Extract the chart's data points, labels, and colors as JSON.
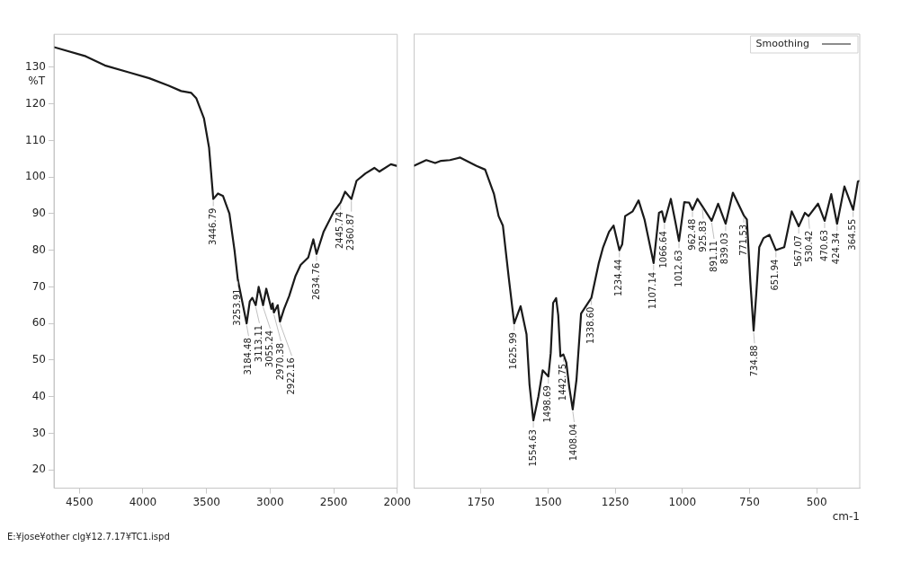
{
  "chart_data": [
    {
      "type": "line",
      "ylabel": "%T",
      "xlim": [
        4700,
        2000
      ],
      "xticks": [
        4500,
        4000,
        3500,
        3000,
        2500,
        2000
      ],
      "ylim": [
        15,
        139
      ],
      "yticks": [
        20,
        30,
        40,
        50,
        60,
        70,
        80,
        90,
        100,
        110,
        120,
        130
      ],
      "grid": false,
      "marker": "none",
      "line_style": "solid",
      "series": [
        {
          "color": "#1a1a1a",
          "x": [
            4700,
            4450,
            4300,
            4100,
            3950,
            3800,
            3700,
            3620,
            3580,
            3520,
            3480,
            3446.79,
            3410,
            3370,
            3320,
            3280,
            3253.91,
            3184.48,
            3160,
            3140,
            3113.11,
            3090,
            3055.24,
            3030,
            2990,
            2980,
            2970.38,
            2940,
            2922.16,
            2890,
            2850,
            2800,
            2760,
            2700,
            2660,
            2634.76,
            2580,
            2500,
            2445.74,
            2410,
            2360.87,
            2320,
            2250,
            2180,
            2140,
            2050,
            2000
          ],
          "values": [
            135.5,
            133,
            130.5,
            128.5,
            127,
            125,
            123.5,
            123,
            121.5,
            116,
            108,
            94,
            95.5,
            94.8,
            90,
            80,
            72,
            60,
            66,
            67,
            65,
            70,
            65,
            69.5,
            64,
            65.5,
            63,
            65,
            60.5,
            64,
            67.5,
            73,
            76,
            78,
            83,
            79,
            85,
            90.5,
            93,
            96,
            94,
            99,
            101,
            102.5,
            101.5,
            103.5,
            103
          ]
        }
      ],
      "annotations": [
        {
          "text": "3446.79",
          "x": 3446.79,
          "y": 94
        },
        {
          "text": "3253.91",
          "x": 3253.91,
          "y": 72
        },
        {
          "text": "3184.48",
          "x": 3184.48,
          "y": 60
        },
        {
          "text": "3113.11",
          "x": 3113.11,
          "y": 65
        },
        {
          "text": "3055.24",
          "x": 3055.24,
          "y": 65
        },
        {
          "text": "2970.38",
          "x": 2970.38,
          "y": 63
        },
        {
          "text": "2922.16",
          "x": 2922.16,
          "y": 60.5
        },
        {
          "text": "2634.76",
          "x": 2634.76,
          "y": 79
        },
        {
          "text": "2445.74",
          "x": 2445.74,
          "y": 93
        },
        {
          "text": "2360.87",
          "x": 2360.87,
          "y": 94
        },
        "E:¥jose¥other clg¥12.7.17¥TC1.ispd"
      ]
    },
    {
      "type": "line",
      "xlabel": "cm-1",
      "xlim": [
        2000,
        340
      ],
      "xticks": [
        1750,
        1500,
        1250,
        1000,
        750,
        500
      ],
      "ylim": [
        15,
        139
      ],
      "tick_labels": "x",
      "grid": false,
      "legend": "top right",
      "marker": "none",
      "line_style": "solid",
      "series": [
        {
          "name": "Smoothing",
          "color": "#1a1a1a",
          "x": [
            2000,
            1953,
            1920,
            1898,
            1865,
            1827,
            1766,
            1734,
            1701,
            1684,
            1668,
            1646,
            1625.99,
            1602,
            1580,
            1569,
            1554.63,
            1536,
            1520,
            1498.69,
            1490,
            1481,
            1470,
            1462,
            1454,
            1442.75,
            1432,
            1421,
            1408.04,
            1394,
            1377,
            1338.6,
            1311,
            1295,
            1273,
            1256,
            1234.44,
            1224,
            1213,
            1185,
            1163,
            1141,
            1107.14,
            1087,
            1076,
            1066.64,
            1043,
            1026,
            1012.63,
            993,
            975,
            962.48,
            944,
            925.83,
            891.11,
            867,
            839.03,
            812,
            771.53,
            760,
            747,
            734.88,
            725,
            714,
            698,
            676,
            651.94,
            621,
            593,
            567.07,
            544,
            530.42,
            495,
            470.63,
            446,
            424.34,
            397,
            364.55,
            347,
            340
          ],
          "values": [
            103,
            104.6,
            103.8,
            104.4,
            104.6,
            105.3,
            103,
            102,
            95.3,
            89.3,
            86.7,
            72.4,
            60,
            64.7,
            57,
            43.4,
            33.5,
            40,
            47.2,
            45.5,
            51.9,
            65.6,
            66.9,
            62.2,
            51,
            51.5,
            49.3,
            42.6,
            36.5,
            44.7,
            62.7,
            67,
            76.5,
            80.8,
            85,
            86.7,
            80,
            81.6,
            89.3,
            90.6,
            93.6,
            88.4,
            76.5,
            90.2,
            90.6,
            87.7,
            94,
            87.7,
            82.5,
            93.1,
            93,
            91,
            94,
            92,
            88,
            92.7,
            87.2,
            95.7,
            89.5,
            88.4,
            71.3,
            58,
            68.1,
            80.8,
            83.3,
            84.2,
            80,
            80.8,
            90.6,
            86.5,
            90.2,
            89.3,
            92.7,
            88,
            95.3,
            87.2,
            97.4,
            91,
            98.7,
            99
          ]
        }
      ],
      "annotations": [
        {
          "text": "1625.99",
          "x": 1625.99,
          "y": 60
        },
        {
          "text": "1554.63",
          "x": 1554.63,
          "y": 33.5
        },
        {
          "text": "1498.69",
          "x": 1498.69,
          "y": 45.5
        },
        {
          "text": "1442.75",
          "x": 1442.75,
          "y": 51.5
        },
        {
          "text": "1408.04",
          "x": 1408.04,
          "y": 36.5
        },
        {
          "text": "1338.60",
          "x": 1338.6,
          "y": 67
        },
        {
          "text": "1234.44",
          "x": 1234.44,
          "y": 80
        },
        {
          "text": "1107.14",
          "x": 1107.14,
          "y": 76.5
        },
        {
          "text": "1066.64",
          "x": 1066.64,
          "y": 87.7
        },
        {
          "text": "1012.63",
          "x": 1012.63,
          "y": 82.5
        },
        {
          "text": "962.48",
          "x": 962.48,
          "y": 91
        },
        {
          "text": "925.83",
          "x": 925.83,
          "y": 92
        },
        {
          "text": "891.11",
          "x": 891.11,
          "y": 88
        },
        {
          "text": "839.03",
          "x": 839.03,
          "y": 87.2
        },
        {
          "text": "771.53",
          "x": 771.53,
          "y": 89.5
        },
        {
          "text": "734.88",
          "x": 734.88,
          "y": 58
        },
        {
          "text": "651.94",
          "x": 651.94,
          "y": 80
        },
        {
          "text": "567.07",
          "x": 567.07,
          "y": 86.5
        },
        {
          "text": "530.42",
          "x": 530.42,
          "y": 89.3
        },
        {
          "text": "470.63",
          "x": 470.63,
          "y": 88
        },
        {
          "text": "424.34",
          "x": 424.34,
          "y": 87.2
        },
        {
          "text": "364.55",
          "x": 364.55,
          "y": 91
        }
      ]
    }
  ]
}
